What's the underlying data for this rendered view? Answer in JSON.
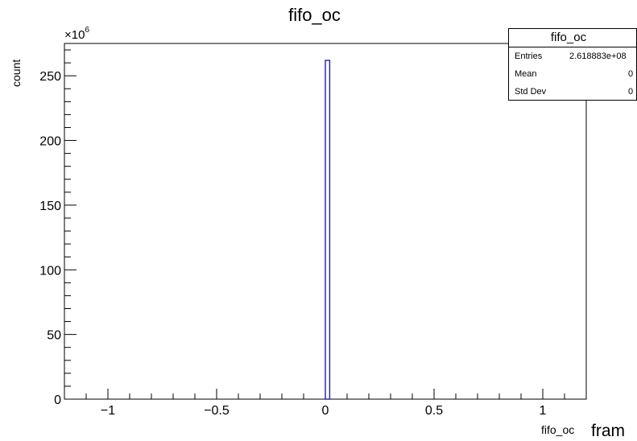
{
  "chart_data": {
    "type": "bar",
    "title": "fifo_oc",
    "ylabel": "count",
    "xlabel": "fifo_oc",
    "y_multiplier_label": "×10",
    "y_multiplier_exponent": "6",
    "xlim": [
      -1.2,
      1.2
    ],
    "ylim": [
      0,
      275
    ],
    "x_ticks": [
      "−1",
      "−0.5",
      "0",
      "0.5",
      "1"
    ],
    "x_tick_values": [
      -1,
      -0.5,
      0,
      0.5,
      1
    ],
    "y_ticks": [
      "0",
      "50",
      "100",
      "150",
      "200",
      "250"
    ],
    "y_tick_values": [
      0,
      50,
      100,
      150,
      200,
      250
    ],
    "bins": [
      {
        "x_low": 0.0,
        "x_high": 0.02,
        "value": 261.9
      }
    ],
    "line_color": "#1f1fa8",
    "grid": false,
    "stats_box": {
      "title": "fifo_oc",
      "rows": [
        {
          "key": "Entries",
          "value": "2.618883e+08"
        },
        {
          "key": "Mean",
          "value": "0"
        },
        {
          "key": "Std Dev",
          "value": "0"
        }
      ],
      "placement": "top-right"
    }
  },
  "footer": {
    "partial_text": "fram"
  }
}
